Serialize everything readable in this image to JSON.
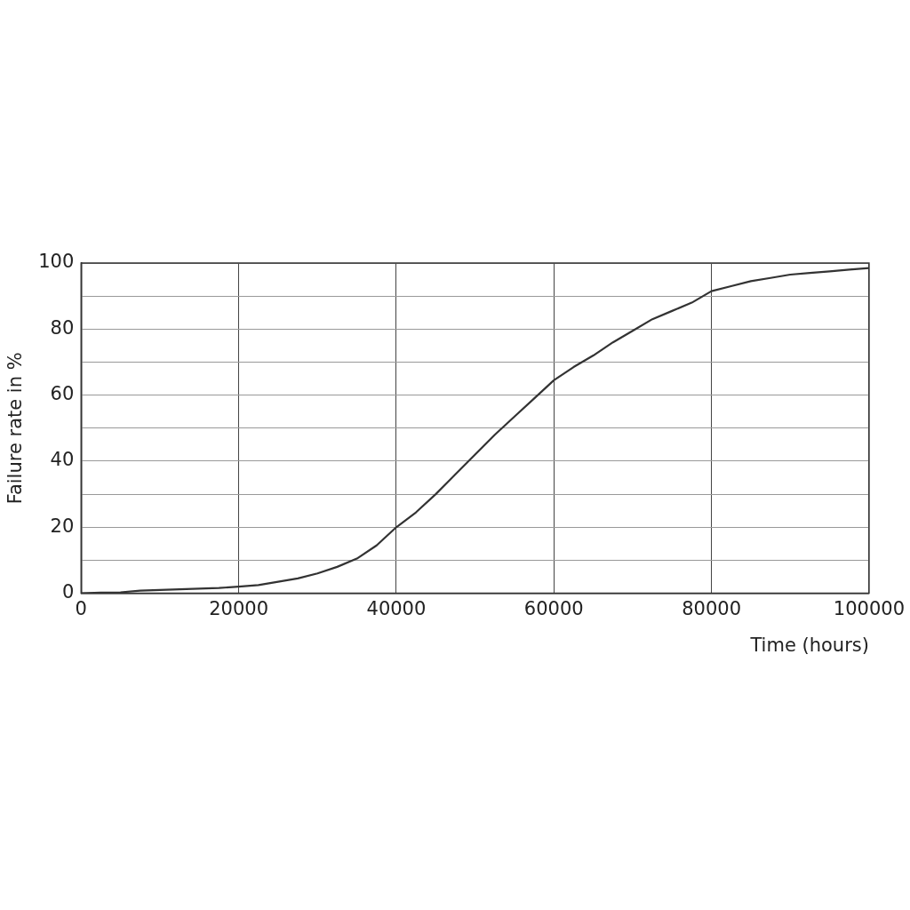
{
  "chart_data": {
    "type": "line",
    "xlabel": "Time (hours)",
    "ylabel": "Failure rate in %",
    "x": [
      0,
      2500,
      5000,
      7500,
      10000,
      12500,
      15000,
      17500,
      20000,
      22500,
      25000,
      27500,
      30000,
      32500,
      35000,
      37500,
      40000,
      42500,
      45000,
      47500,
      50000,
      52500,
      55000,
      57500,
      60000,
      62500,
      65000,
      67500,
      70000,
      72500,
      75000,
      77500,
      80000,
      82500,
      85000,
      87500,
      90000,
      92500,
      95000,
      97500,
      100000
    ],
    "series": [
      {
        "color": "#333333",
        "values": [
          0,
          0.2,
          0.3,
          0.8,
          1,
          1.2,
          1.4,
          1.6,
          2,
          2.5,
          3.5,
          4.5,
          6,
          8,
          10.5,
          14.5,
          20,
          24.5,
          30,
          36,
          42,
          48,
          53.5,
          59,
          64.5,
          68.5,
          72,
          76,
          79.5,
          83,
          85.5,
          88,
          91.5,
          93,
          94.5,
          95.5,
          96.5,
          97,
          97.5,
          98,
          98.5
        ]
      }
    ],
    "xlim": [
      0,
      100000
    ],
    "xticks": [
      0,
      20000,
      40000,
      60000,
      80000,
      100000
    ],
    "ylim": [
      0,
      100
    ],
    "yticks": [
      0,
      {
        "value": 10,
        "label": null
      },
      20,
      {
        "value": 30,
        "label": null
      },
      40,
      {
        "value": 50,
        "label": null
      },
      60,
      {
        "value": 70,
        "label": null
      },
      80,
      {
        "value": 90,
        "label": null
      },
      100
    ],
    "grid": true,
    "marker": "none",
    "line_style": "solid",
    "legend": false
  }
}
